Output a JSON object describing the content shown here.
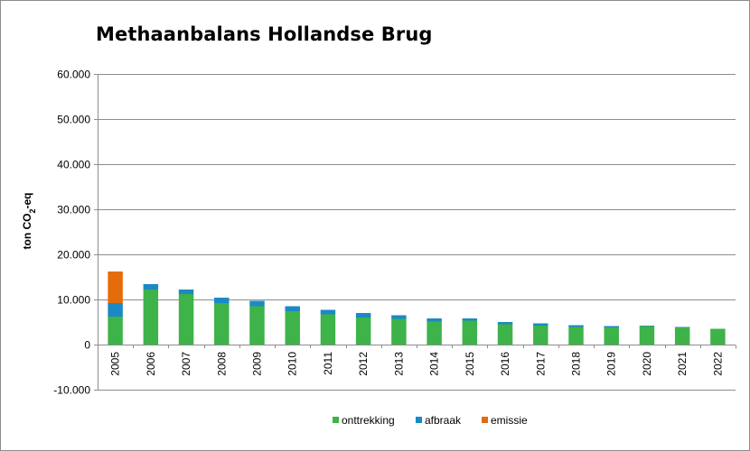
{
  "colors": {
    "onttrekking": "#3db34a",
    "afbraak": "#1a8ac6",
    "emissie": "#e46c0a"
  },
  "chart_data": {
    "type": "bar",
    "stacked": true,
    "title": "Methaanbalans Hollandse Brug",
    "ylabel_parts": {
      "main": "ton CO",
      "sub": "2",
      "tail": "-eq"
    },
    "ylim": [
      -10000,
      60000
    ],
    "yticks": [
      -10000,
      0,
      10000,
      20000,
      30000,
      40000,
      50000,
      60000
    ],
    "ytick_labels": [
      "-10.000",
      "0",
      "10.000",
      "20.000",
      "30.000",
      "40.000",
      "50.000",
      "60.000"
    ],
    "grid": true,
    "legend_position": "bottom",
    "categories": [
      "2005",
      "2006",
      "2007",
      "2008",
      "2009",
      "2010",
      "2011",
      "2012",
      "2013",
      "2014",
      "2015",
      "2016",
      "2017",
      "2018",
      "2019",
      "2020",
      "2021",
      "2022"
    ],
    "series": [
      {
        "name": "onttrekking",
        "color": "#3db34a",
        "values": [
          6200,
          12200,
          11200,
          9200,
          8500,
          7400,
          6700,
          6000,
          5700,
          5100,
          5300,
          4500,
          4200,
          3900,
          3800,
          4100,
          3800,
          3500
        ]
      },
      {
        "name": "afbraak",
        "color": "#1a8ac6",
        "values": [
          3000,
          1200,
          1000,
          1200,
          1200,
          1100,
          1000,
          1000,
          800,
          700,
          500,
          500,
          500,
          400,
          300,
          100,
          100,
          0
        ]
      },
      {
        "name": "emissie",
        "color": "#e46c0a",
        "values": [
          7000,
          0,
          0,
          0,
          0,
          0,
          0,
          0,
          0,
          0,
          0,
          0,
          0,
          0,
          0,
          0,
          0,
          0
        ]
      }
    ]
  }
}
